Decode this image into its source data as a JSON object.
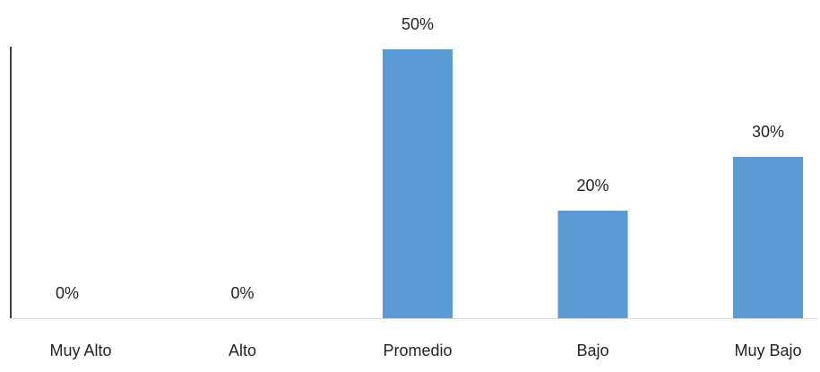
{
  "chart_data": {
    "type": "bar",
    "categories": [
      "Muy Alto",
      "Alto",
      "Promedio",
      "Bajo",
      "Muy Bajo"
    ],
    "values": [
      0,
      0,
      50,
      20,
      30
    ],
    "value_labels": [
      "0%",
      "0%",
      "50%",
      "20%",
      "30%"
    ],
    "color": "#5b9bd5",
    "ylim": [
      0,
      50
    ]
  }
}
